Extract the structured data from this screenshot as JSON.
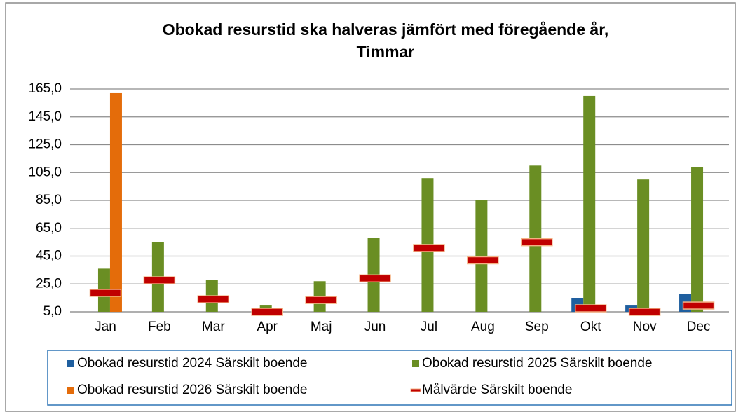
{
  "chart_data": {
    "type": "bar",
    "title": [
      "Obokad resurstid ska halveras jämfört med föregående år,",
      "Timmar"
    ],
    "categories": [
      "Jan",
      "Feb",
      "Mar",
      "Apr",
      "Maj",
      "Jun",
      "Jul",
      "Aug",
      "Sep",
      "Okt",
      "Nov",
      "Dec"
    ],
    "series": [
      {
        "name": "Obokad resurstid 2024 Särskilt boende",
        "color": "#1f5f9f",
        "values": [
          null,
          null,
          null,
          null,
          null,
          null,
          null,
          null,
          null,
          15,
          9.5,
          18
        ]
      },
      {
        "name": "Obokad resurstid 2025 Särskilt boende",
        "color": "#6a8e23",
        "values": [
          36,
          55,
          28,
          9.5,
          27,
          58,
          101,
          85,
          110,
          160,
          100,
          109
        ]
      },
      {
        "name": "Obokad resurstid 2026 Särskilt boende",
        "color": "#e46c0a",
        "values": [
          162,
          null,
          null,
          null,
          null,
          null,
          null,
          null,
          null,
          null,
          null,
          null
        ]
      },
      {
        "name": "Målvärde Särskilt boende",
        "color": "#c00000",
        "marker": "dash",
        "values": [
          18.6,
          27.6,
          14,
          5,
          13.5,
          29,
          50.8,
          42,
          55,
          7.5,
          5,
          9.5
        ]
      }
    ],
    "ylim": [
      5,
      165
    ],
    "yticks": [
      {
        "value": 5,
        "label": "5,0"
      },
      {
        "value": 25,
        "label": "25,0"
      },
      {
        "value": 45,
        "label": "45,0"
      },
      {
        "value": 65,
        "label": "65,0"
      },
      {
        "value": 85,
        "label": "85,0"
      },
      {
        "value": 105,
        "label": "105,0"
      },
      {
        "value": 125,
        "label": "125,0"
      },
      {
        "value": 145,
        "label": "145,0"
      },
      {
        "value": 165,
        "label": "165,0"
      }
    ],
    "grid": true,
    "legend": "bottom"
  }
}
